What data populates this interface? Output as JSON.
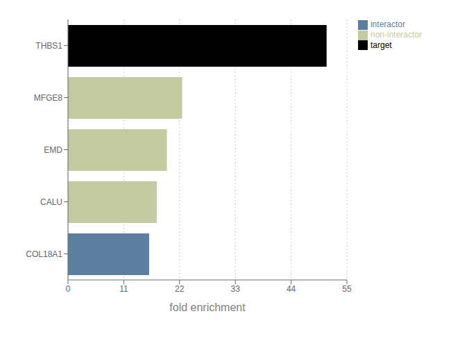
{
  "chart_data": {
    "type": "bar",
    "orientation": "horizontal",
    "stacked": true,
    "categories": [
      "COL18A1",
      "CALU",
      "EMD",
      "MFGE8",
      "THBS1"
    ],
    "series": [
      {
        "name": "target",
        "color": "#000000",
        "values": [
          null,
          null,
          null,
          null,
          51.0
        ]
      },
      {
        "name": "interactor",
        "color": "#5b7fa0",
        "values": [
          16.0,
          null,
          null,
          null,
          null
        ]
      },
      {
        "name": "non-interactor",
        "color": "#c5c9a0",
        "values": [
          null,
          17.5,
          19.5,
          22.5,
          null
        ]
      }
    ],
    "xlabel": "fold enrichment",
    "xlim": [
      0,
      55
    ],
    "xticks": [
      0,
      11,
      22,
      33,
      44,
      55
    ],
    "grid": true,
    "legend": "right"
  }
}
